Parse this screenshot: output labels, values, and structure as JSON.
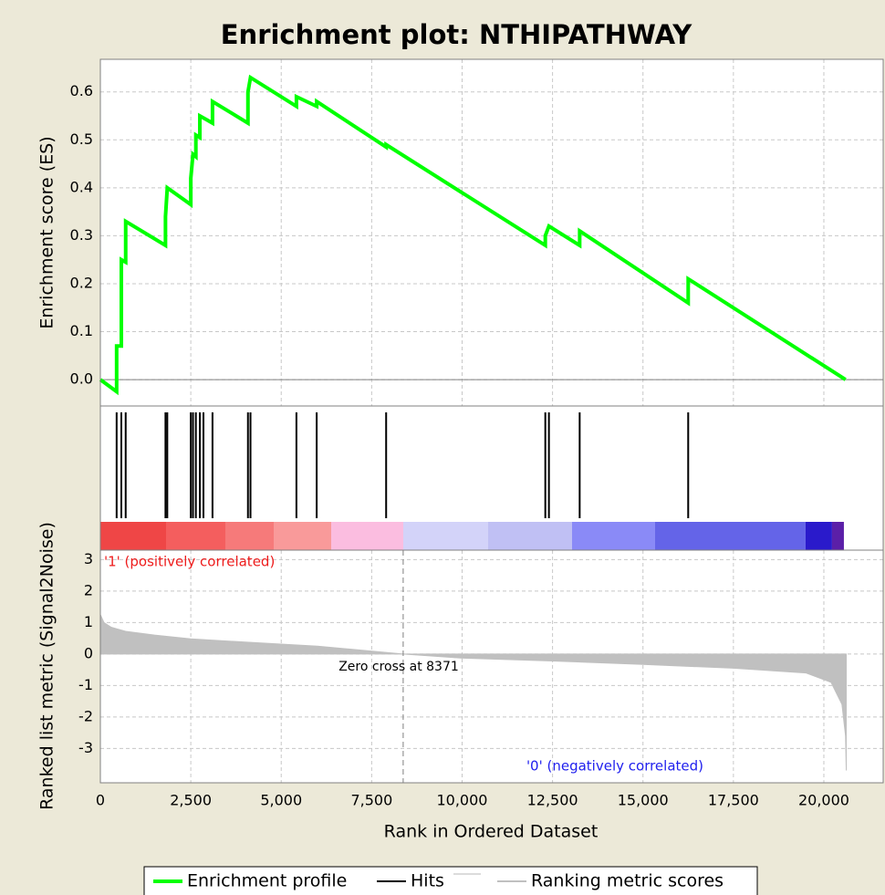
{
  "chart_data": [
    {
      "type": "line",
      "title": "Enrichment plot: NTHIPATHWAY",
      "ylabel": "Enrichment score (ES)",
      "xlim": [
        0,
        21640
      ],
      "ylim": [
        -0.055,
        0.668
      ],
      "yticks": [
        {
          "value": 0,
          "label": "0.0"
        },
        0.1,
        0.2,
        0.3,
        0.4,
        0.5,
        0.6
      ],
      "grid": true,
      "series": [
        {
          "name": "Enrichment profile",
          "color": "#00ff00",
          "x": [
            0,
            450,
            450,
            580,
            580,
            700,
            700,
            1800,
            1800,
            1850,
            2500,
            2500,
            2560,
            2640,
            2640,
            2750,
            2750,
            3100,
            3100,
            4080,
            4080,
            4150,
            5420,
            5420,
            5980,
            5980,
            7900,
            7900,
            12300,
            12300,
            12400,
            13250,
            13250,
            16250,
            16250,
            20600
          ],
          "values": [
            0,
            -0.025,
            0.07,
            0.07,
            0.25,
            0.245,
            0.33,
            0.28,
            0.34,
            0.4,
            0.365,
            0.42,
            0.47,
            0.465,
            0.51,
            0.505,
            0.55,
            0.535,
            0.58,
            0.535,
            0.6,
            0.63,
            0.57,
            0.59,
            0.57,
            0.58,
            0.485,
            0.49,
            0.28,
            0.3,
            0.32,
            0.28,
            0.31,
            0.16,
            0.21,
            0
          ]
        }
      ]
    },
    {
      "type": "rug",
      "xlim": [
        0,
        21640
      ],
      "series": [
        {
          "name": "Hits",
          "color": "#000000",
          "x": [
            450,
            580,
            700,
            1800,
            1850,
            2500,
            2560,
            2640,
            2750,
            2850,
            3100,
            4080,
            4150,
            5420,
            5980,
            7900,
            12300,
            12400,
            13250,
            16250
          ]
        }
      ],
      "color_bar": {
        "bounds": [
          0,
          1816,
          3455,
          4792,
          6381,
          8373,
          10719,
          13039,
          15334,
          19495,
          20226,
          20554
        ],
        "colors": [
          "#ef4646",
          "#f45e5e",
          "#f67a7a",
          "#f99a9a",
          "#fbbde0",
          "#d3d3f9",
          "#c0c0f4",
          "#8a8af7",
          "#6464e8",
          "#2a1acb",
          "#5b1fa8"
        ]
      }
    },
    {
      "type": "area",
      "ylabel": "Ranked list metric (Signal2Noise)",
      "xlabel": "Rank in Ordered Dataset",
      "xlim": [
        0,
        21640
      ],
      "ylim": [
        -4.09,
        3.3
      ],
      "yticks": [
        -3,
        -2,
        -1,
        0,
        1,
        2,
        3
      ],
      "xticks": [
        0,
        {
          "value": 2500,
          "label": "2,500"
        },
        {
          "value": 5000,
          "label": "5,000"
        },
        {
          "value": 7500,
          "label": "7,500"
        },
        {
          "value": 10000,
          "label": "10,000"
        },
        {
          "value": 12500,
          "label": "12,500"
        },
        {
          "value": 15000,
          "label": "15,000"
        },
        {
          "value": 17500,
          "label": "17,500"
        },
        {
          "value": 20000,
          "label": "20,000"
        }
      ],
      "grid": true,
      "zero_cross": 8371,
      "annotations": {
        "positive": "'1' (positively correlated)",
        "negative": "'0' (negatively correlated)",
        "zero": "Zero cross at 8371"
      },
      "series": [
        {
          "name": "Ranking metric scores",
          "color": "#c0c0c0",
          "x": [
            0,
            100,
            300,
            700,
            1500,
            2500,
            4000,
            6000,
            8371,
            10000,
            12500,
            15000,
            17500,
            19500,
            20200,
            20500,
            20600,
            20620
          ],
          "values": [
            1.25,
            1.0,
            0.85,
            0.72,
            0.6,
            0.48,
            0.38,
            0.25,
            0,
            -0.13,
            -0.22,
            -0.33,
            -0.45,
            -0.6,
            -0.9,
            -1.6,
            -2.6,
            -3.7
          ]
        }
      ]
    }
  ]
}
